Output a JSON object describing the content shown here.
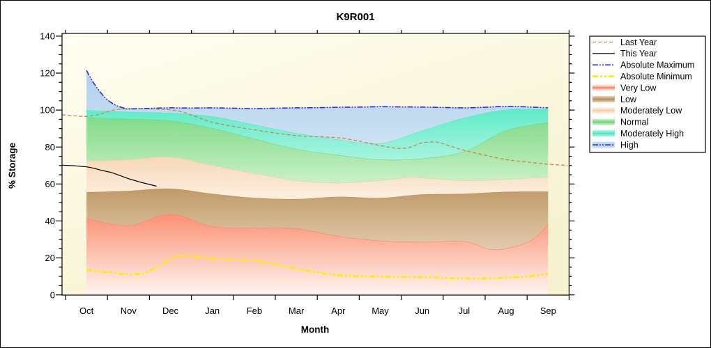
{
  "chart_data": {
    "type": "area",
    "title": "K9R001",
    "xlabel": "Month",
    "ylabel": "% Storage",
    "x_categories": [
      "Oct",
      "Nov",
      "Dec",
      "Jan",
      "Feb",
      "Mar",
      "Apr",
      "May",
      "Jun",
      "Jul",
      "Aug",
      "Sep"
    ],
    "ylim": [
      0,
      140
    ],
    "y_major_step": 20,
    "y_minor_step": 5,
    "grid": false,
    "legend_position": "outside-right",
    "plot_bg_top": "#FFFEF1",
    "plot_bg_bottom": "#F6F2CF",
    "boundaries": {
      "zero": [
        [
          0,
          0
        ],
        [
          11,
          0
        ]
      ],
      "very_low_top": [
        [
          0,
          41.4
        ],
        [
          1,
          37.6
        ],
        [
          2,
          43.7
        ],
        [
          3,
          37.1
        ],
        [
          4,
          36.2
        ],
        [
          5,
          35.9
        ],
        [
          6,
          31.8
        ],
        [
          7,
          29.3
        ],
        [
          8,
          28.6
        ],
        [
          9,
          29.0
        ],
        [
          9.6,
          24.8
        ],
        [
          10,
          25.2
        ],
        [
          10.6,
          29.5
        ],
        [
          11,
          38.0
        ]
      ],
      "low_top": [
        [
          0,
          55.6
        ],
        [
          1,
          56.3
        ],
        [
          2,
          57.5
        ],
        [
          3,
          54.7
        ],
        [
          4,
          52.5
        ],
        [
          5,
          51.9
        ],
        [
          6,
          53.1
        ],
        [
          7,
          52.5
        ],
        [
          8,
          54.4
        ],
        [
          9,
          54.7
        ],
        [
          10,
          55.8
        ],
        [
          11,
          55.9
        ]
      ],
      "mod_low_top": [
        [
          0,
          72.5
        ],
        [
          1,
          73.2
        ],
        [
          2,
          74.7
        ],
        [
          3,
          70.1
        ],
        [
          4,
          65.7
        ],
        [
          5,
          61.9
        ],
        [
          6,
          60.6
        ],
        [
          7,
          61.9
        ],
        [
          7.7,
          63.6
        ],
        [
          8,
          63.3
        ],
        [
          9,
          61.9
        ],
        [
          10,
          62.5
        ],
        [
          11,
          63.8
        ]
      ],
      "normal_top": [
        [
          0,
          95.8
        ],
        [
          1,
          95.2
        ],
        [
          2,
          94.2
        ],
        [
          3,
          90.2
        ],
        [
          4,
          84.5
        ],
        [
          5,
          78.9
        ],
        [
          6,
          75.7
        ],
        [
          7,
          73.2
        ],
        [
          8,
          73.8
        ],
        [
          9,
          77.6
        ],
        [
          10,
          88.9
        ],
        [
          11,
          93.3
        ]
      ],
      "mod_high_top": [
        [
          0,
          100.0
        ],
        [
          1,
          99.0
        ],
        [
          2,
          98.4
        ],
        [
          3,
          96.5
        ],
        [
          4,
          92.1
        ],
        [
          5,
          87.6
        ],
        [
          6,
          84.0
        ],
        [
          7,
          82.0
        ],
        [
          8,
          88.9
        ],
        [
          9,
          95.8
        ],
        [
          10,
          100.2
        ],
        [
          11,
          100.3
        ]
      ],
      "abs_max_top": [
        [
          0,
          121.5
        ],
        [
          0.12,
          116.5
        ],
        [
          0.3,
          110.5
        ],
        [
          0.5,
          105.5
        ],
        [
          0.7,
          102.6
        ],
        [
          0.9,
          101.0
        ],
        [
          1,
          100.6
        ],
        [
          1.5,
          100.9
        ],
        [
          2,
          101.2
        ],
        [
          2.5,
          101.1
        ],
        [
          3,
          101.2
        ],
        [
          3.5,
          101.0
        ],
        [
          4,
          100.8
        ],
        [
          4.5,
          101.0
        ],
        [
          5,
          101.2
        ],
        [
          5.5,
          101.3
        ],
        [
          6,
          101.5
        ],
        [
          6.5,
          101.6
        ],
        [
          7,
          101.8
        ],
        [
          7.5,
          101.7
        ],
        [
          8,
          101.6
        ],
        [
          8.5,
          101.4
        ],
        [
          9,
          101.2
        ],
        [
          9.5,
          101.5
        ],
        [
          10,
          102.0
        ],
        [
          10.5,
          101.7
        ],
        [
          11,
          101.2
        ]
      ]
    },
    "bands": [
      {
        "name": "Very Low",
        "lower": "zero",
        "upper": "very_low_top",
        "color_top": "#FB9074",
        "color_bottom": "#FEF4F0",
        "edge": "#F5826A"
      },
      {
        "name": "Low",
        "lower": "very_low_top",
        "upper": "low_top",
        "color_top": "#C09A68",
        "color_bottom": "#E2CBAF",
        "edge": "#B68E5C"
      },
      {
        "name": "Moderately Low",
        "lower": "low_top",
        "upper": "mod_low_top",
        "color_top": "#F7D7B7",
        "color_bottom": "#FCF0E2",
        "edge": "#EECCA8"
      },
      {
        "name": "Normal",
        "lower": "mod_low_top",
        "upper": "normal_top",
        "color_top": "#82DB88",
        "color_bottom": "#C9F0C7",
        "edge": "#6FCF78"
      },
      {
        "name": "Moderately High",
        "lower": "normal_top",
        "upper": "mod_high_top",
        "color_top": "#5FECC8",
        "color_bottom": "#A9F3DF",
        "edge": "#4FE5C0"
      },
      {
        "name": "High",
        "lower": "mod_high_top",
        "upper": "abs_max_top",
        "color_top": "#AFD0EB",
        "color_bottom": "#CDE2F3",
        "edge": null
      }
    ],
    "lines": [
      {
        "name": "Last Year",
        "color": "#C8854E",
        "width": 1.3,
        "dash": "5 3",
        "smooth": true,
        "points": [
          [
            -0.58,
            97.4
          ],
          [
            -0.25,
            96.8
          ],
          [
            0,
            96.6
          ],
          [
            0.3,
            97.6
          ],
          [
            0.6,
            99.8
          ],
          [
            0.9,
            100.6
          ],
          [
            1.3,
            100.8
          ],
          [
            1.8,
            100.4
          ],
          [
            2,
            100.1
          ],
          [
            2.3,
            98.9
          ],
          [
            2.6,
            96.5
          ],
          [
            3,
            93.4
          ],
          [
            3.5,
            91.2
          ],
          [
            4,
            89.3
          ],
          [
            4.5,
            87.6
          ],
          [
            5,
            86.2
          ],
          [
            5.5,
            85.6
          ],
          [
            6,
            85.0
          ],
          [
            6.5,
            83.2
          ],
          [
            7,
            80.8
          ],
          [
            7.4,
            79.3
          ],
          [
            7.7,
            79.8
          ],
          [
            8,
            82.3
          ],
          [
            8.35,
            82.6
          ],
          [
            8.7,
            80.3
          ],
          [
            9,
            78.2
          ],
          [
            9.5,
            75.6
          ],
          [
            10,
            73.2
          ],
          [
            10.5,
            71.9
          ],
          [
            11,
            70.7
          ],
          [
            11.46,
            70.0
          ]
        ]
      },
      {
        "name": "This Year",
        "color": "#000000",
        "width": 1.2,
        "dash": "",
        "smooth": false,
        "points": [
          [
            -0.58,
            70.2
          ],
          [
            -0.3,
            69.9
          ],
          [
            0,
            69.3
          ],
          [
            0.1,
            68.9
          ],
          [
            0.38,
            67.3
          ],
          [
            0.6,
            66.2
          ],
          [
            1.0,
            62.9
          ],
          [
            1.3,
            60.9
          ],
          [
            1.67,
            58.8
          ]
        ]
      },
      {
        "name": "Absolute Maximum",
        "color": "#2222DC",
        "width": 1.5,
        "dash": "8 2 2 2 2 2",
        "smooth": true,
        "points_ref": "abs_max_top"
      },
      {
        "name": "Absolute Minimum",
        "color": "#FFEC00",
        "width": 2.8,
        "dash": "8 3 3 3 3 3",
        "smooth": true,
        "points": [
          [
            0,
            13.4
          ],
          [
            0.5,
            12.3
          ],
          [
            1,
            11.3
          ],
          [
            1.4,
            12.0
          ],
          [
            1.8,
            16.5
          ],
          [
            2.1,
            20.3
          ],
          [
            2.35,
            21.2
          ],
          [
            2.7,
            20.3
          ],
          [
            3,
            19.6
          ],
          [
            3.5,
            19.0
          ],
          [
            4,
            18.6
          ],
          [
            4.4,
            17.0
          ],
          [
            5,
            14.2
          ],
          [
            5.5,
            12.2
          ],
          [
            6,
            10.7
          ],
          [
            6.5,
            10.1
          ],
          [
            7,
            9.9
          ],
          [
            7.5,
            9.7
          ],
          [
            8,
            9.6
          ],
          [
            8.5,
            9.2
          ],
          [
            9,
            8.9
          ],
          [
            9.5,
            8.9
          ],
          [
            10,
            9.3
          ],
          [
            10.5,
            9.9
          ],
          [
            11,
            11.5
          ]
        ]
      }
    ],
    "legend": [
      {
        "label": "Last Year",
        "type": "line",
        "color": "#C8854E",
        "dash": "5 3",
        "width": 1.3
      },
      {
        "label": "This Year",
        "type": "line",
        "color": "#000000",
        "dash": "",
        "width": 1.2
      },
      {
        "label": "Absolute Maximum",
        "type": "line",
        "color": "#2222DC",
        "dash": "8 2 2 2 2 2",
        "width": 1.5
      },
      {
        "label": "Absolute Minimum",
        "type": "line",
        "color": "#FFEC00",
        "dash": "8 3 3 3 3 3",
        "width": 2.8
      },
      {
        "label": "Very Low",
        "type": "band",
        "color_top": "#FB9074",
        "color_bottom": "#FEF4F0",
        "edge": "#F5826A"
      },
      {
        "label": "Low",
        "type": "band",
        "color_top": "#C09A68",
        "color_bottom": "#E2CBAF",
        "edge": "#B68E5C"
      },
      {
        "label": "Moderately Low",
        "type": "band",
        "color_top": "#F7D7B7",
        "color_bottom": "#FCF0E2",
        "edge": "#EECCA8"
      },
      {
        "label": "Normal",
        "type": "band",
        "color_top": "#82DB88",
        "color_bottom": "#C9F0C7",
        "edge": "#6FCF78"
      },
      {
        "label": "Moderately High",
        "type": "band",
        "color_top": "#5FECC8",
        "color_bottom": "#A9F3DF",
        "edge": "#4FE5C0"
      },
      {
        "label": "High",
        "type": "band",
        "color_top": "#AFD0EB",
        "color_bottom": "#CDE2F3",
        "edge": null,
        "overlay": {
          "color": "#2222DC",
          "dash": "8 2 2 2 2 2",
          "width": 1.5
        }
      }
    ]
  }
}
